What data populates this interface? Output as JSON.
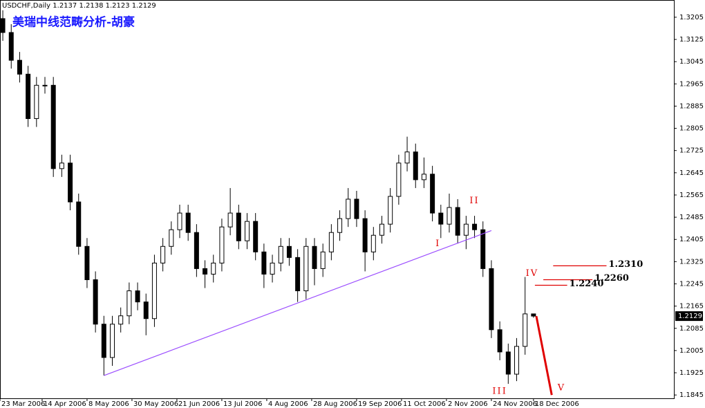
{
  "chart_data": {
    "type": "candlestick",
    "header": "USDCHF,Daily  1.2137 1.2138 1.2123 1.2129",
    "title": "美瑞中线范畴分析-胡豪",
    "x": [
      1,
      4,
      7,
      10,
      13,
      16,
      19,
      22,
      25,
      28,
      31,
      34,
      37,
      40,
      43,
      46,
      49,
      52,
      55,
      58,
      61,
      64,
      67,
      70,
      73,
      76,
      79,
      82,
      85,
      88,
      91,
      94,
      97,
      100,
      103,
      106,
      109,
      112,
      115,
      118,
      121,
      124,
      127,
      130,
      133,
      136,
      139,
      142,
      145,
      148,
      151,
      154,
      157,
      160,
      163,
      166,
      169,
      172,
      175,
      178,
      181,
      184,
      187,
      190
    ],
    "open": [
      1.32,
      1.315,
      1.305,
      1.3,
      1.284,
      1.296,
      1.296,
      1.266,
      1.268,
      1.254,
      1.238,
      1.226,
      1.21,
      1.198,
      1.21,
      1.213,
      1.222,
      1.218,
      1.212,
      1.232,
      1.238,
      1.244,
      1.25,
      1.243,
      1.23,
      1.228,
      1.232,
      1.245,
      1.25,
      1.24,
      1.247,
      1.236,
      1.228,
      1.232,
      1.238,
      1.234,
      1.222,
      1.238,
      1.23,
      1.236,
      1.243,
      1.248,
      1.255,
      1.248,
      1.236,
      1.242,
      1.246,
      1.256,
      1.268,
      1.272,
      1.262,
      1.264,
      1.25,
      1.246,
      1.252,
      1.242,
      1.246,
      1.244,
      1.23,
      1.208,
      1.2,
      1.192,
      1.202,
      1.2137
    ],
    "high": [
      1.323,
      1.318,
      1.308,
      1.303,
      1.299,
      1.299,
      1.299,
      1.271,
      1.271,
      1.257,
      1.241,
      1.229,
      1.213,
      1.213,
      1.216,
      1.225,
      1.225,
      1.221,
      1.235,
      1.241,
      1.247,
      1.253,
      1.253,
      1.246,
      1.233,
      1.235,
      1.248,
      1.259,
      1.253,
      1.25,
      1.25,
      1.239,
      1.235,
      1.241,
      1.241,
      1.237,
      1.241,
      1.241,
      1.239,
      1.246,
      1.251,
      1.259,
      1.258,
      1.251,
      1.245,
      1.249,
      1.259,
      1.271,
      1.2775,
      1.275,
      1.27,
      1.267,
      1.253,
      1.257,
      1.255,
      1.249,
      1.249,
      1.247,
      1.233,
      1.211,
      1.203,
      1.205,
      1.227,
      1.2138
    ],
    "low": [
      1.312,
      1.302,
      1.297,
      1.281,
      1.281,
      1.293,
      1.263,
      1.263,
      1.251,
      1.235,
      1.223,
      1.207,
      1.1915,
      1.195,
      1.207,
      1.21,
      1.215,
      1.206,
      1.209,
      1.229,
      1.235,
      1.241,
      1.24,
      1.227,
      1.223,
      1.225,
      1.229,
      1.242,
      1.237,
      1.237,
      1.233,
      1.223,
      1.225,
      1.229,
      1.231,
      1.218,
      1.219,
      1.224,
      1.227,
      1.233,
      1.24,
      1.245,
      1.245,
      1.229,
      1.233,
      1.239,
      1.243,
      1.253,
      1.265,
      1.259,
      1.259,
      1.247,
      1.241,
      1.243,
      1.239,
      1.237,
      1.241,
      1.227,
      1.205,
      1.197,
      1.1885,
      1.1895,
      1.199,
      1.2123
    ],
    "close": [
      1.315,
      1.305,
      1.3,
      1.284,
      1.296,
      1.296,
      1.266,
      1.268,
      1.254,
      1.238,
      1.226,
      1.21,
      1.198,
      1.21,
      1.213,
      1.222,
      1.218,
      1.212,
      1.232,
      1.238,
      1.244,
      1.25,
      1.243,
      1.23,
      1.228,
      1.232,
      1.245,
      1.25,
      1.24,
      1.247,
      1.236,
      1.228,
      1.232,
      1.238,
      1.234,
      1.222,
      1.238,
      1.23,
      1.236,
      1.243,
      1.248,
      1.255,
      1.248,
      1.236,
      1.242,
      1.246,
      1.256,
      1.268,
      1.272,
      1.262,
      1.264,
      1.25,
      1.246,
      1.252,
      1.242,
      1.246,
      1.244,
      1.23,
      1.208,
      1.2,
      1.192,
      1.202,
      1.2137,
      1.2129
    ],
    "color": "#000000",
    "xlim": [
      0,
      240
    ],
    "ylim": [
      1.1833,
      1.3267
    ],
    "xticks": [
      {
        "value": 0,
        "label": "23 Mar 2006"
      },
      {
        "value": 15,
        "label": "14 Apr 2006"
      },
      {
        "value": 31,
        "label": "8 May 2006"
      },
      {
        "value": 47,
        "label": "30 May 2006"
      },
      {
        "value": 63,
        "label": "21 Jun 2006"
      },
      {
        "value": 79,
        "label": "13 Jul 2006"
      },
      {
        "value": 95,
        "label": "4 Aug 2006"
      },
      {
        "value": 111,
        "label": "28 Aug 2006"
      },
      {
        "value": 127,
        "label": "19 Sep 2006"
      },
      {
        "value": 143,
        "label": "11 Oct 2006"
      },
      {
        "value": 159,
        "label": "2 Nov 2006"
      },
      {
        "value": 175,
        "label": "24 Nov 2006"
      },
      {
        "value": 190,
        "label": "18 Dec 2006"
      }
    ],
    "yticks": [
      1.3205,
      1.3125,
      1.3045,
      1.2965,
      1.2885,
      1.2805,
      1.2725,
      1.2645,
      1.2565,
      1.2485,
      1.2405,
      1.2325,
      1.2245,
      1.2165,
      1.2085,
      1.2005,
      1.1925,
      1.1845
    ],
    "trendline": {
      "x": [
        37,
        175
      ],
      "y": [
        1.1915,
        1.2437
      ],
      "color": "#9b4dff"
    },
    "forecast": {
      "x": [
        191,
        196.5
      ],
      "y": [
        1.2129,
        1.1845
      ],
      "color": "#e00000"
    },
    "waves": [
      {
        "label": "I",
        "x": 156,
        "y": 1.2389
      },
      {
        "label": "II",
        "x": 169,
        "y": 1.2544
      },
      {
        "label": "III",
        "x": 178,
        "y": 1.1858
      },
      {
        "label": "IV",
        "x": 189.5,
        "y": 1.2282
      },
      {
        "label": "V",
        "x": 200,
        "y": 1.187
      }
    ],
    "levels": [
      {
        "value": 1.231,
        "label": "1.2310",
        "x": [
          197,
          216
        ]
      },
      {
        "value": 1.226,
        "label": "1.2260",
        "x": [
          193.5,
          211
        ]
      },
      {
        "value": 1.224,
        "label": "1.2240",
        "x": [
          190.5,
          202
        ]
      }
    ],
    "level_color": "#e00000"
  }
}
